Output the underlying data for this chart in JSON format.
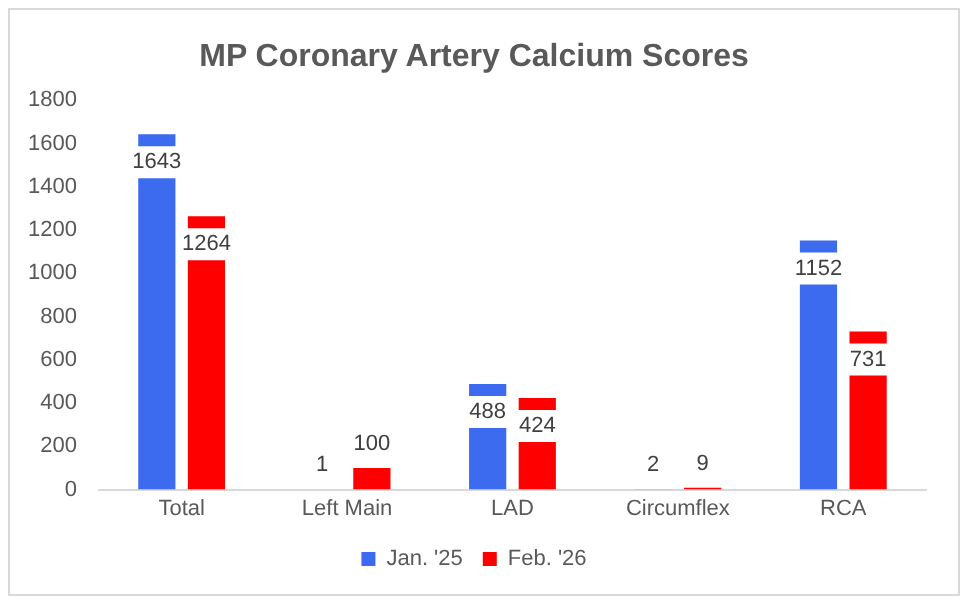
{
  "chart_data": {
    "type": "bar",
    "title": "MP Coronary Artery Calcium Scores",
    "categories": [
      "Total",
      "Left Main",
      "LAD",
      "Circumflex",
      "RCA"
    ],
    "series": [
      {
        "name": "Jan. '25",
        "color": "#3d6bf0",
        "values": [
          1643,
          1,
          488,
          2,
          1152
        ]
      },
      {
        "name": "Feb. '26",
        "color": "#ff0000",
        "values": [
          1264,
          100,
          424,
          9,
          731
        ]
      }
    ],
    "ylim": [
      0,
      1800
    ],
    "yticks": [
      0,
      200,
      400,
      600,
      800,
      1000,
      1200,
      1400,
      1600,
      1800
    ],
    "grid": false,
    "legend": "bottom",
    "data_labels": true
  }
}
